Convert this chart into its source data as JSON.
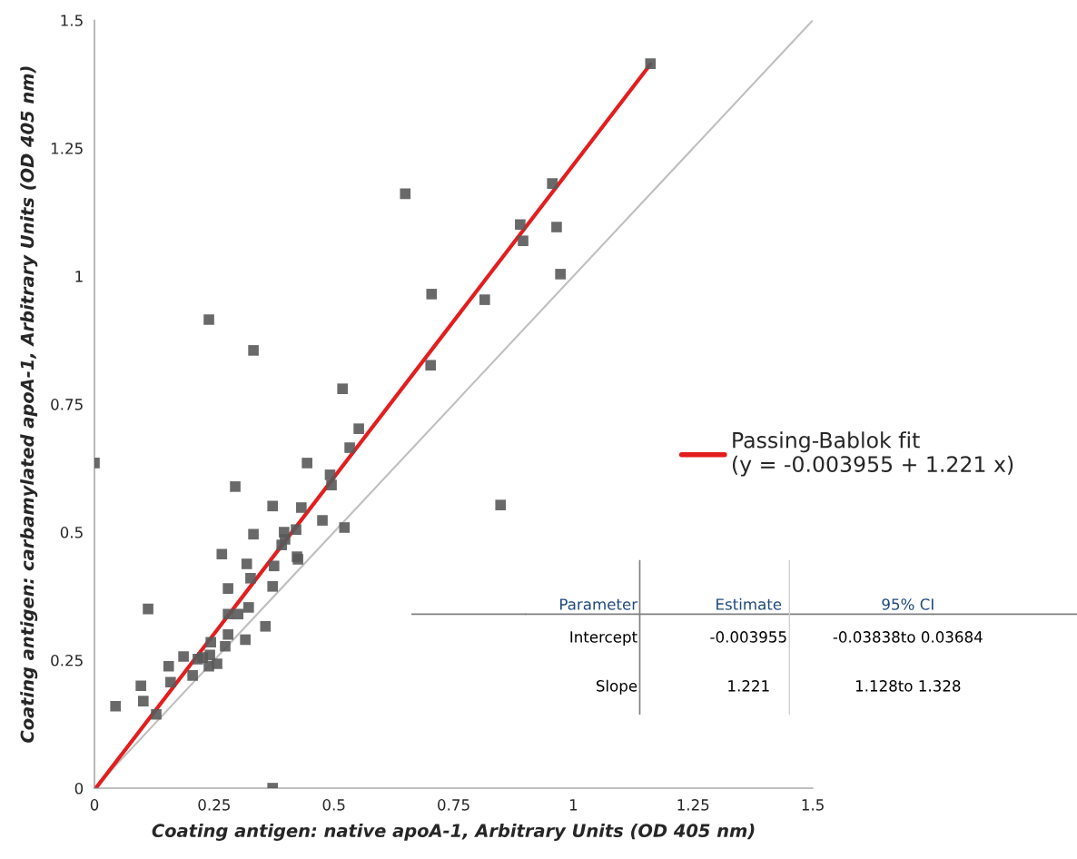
{
  "chart_data": {
    "type": "scatter",
    "xlabel": "Coating antigen: native apoA-1, Arbitrary Units (OD 405 nm)",
    "ylabel": "Coating antigen: carbamylated apoA-1, Arbitrary Units (OD 405 nm)",
    "xlim": [
      0,
      1.5
    ],
    "ylim": [
      0,
      1.5
    ],
    "xticks": [
      0,
      0.25,
      0.5,
      0.75,
      1,
      1.25,
      1.5
    ],
    "yticks": [
      0,
      0.25,
      0.5,
      0.75,
      1,
      1.25,
      1.5
    ],
    "grid": false,
    "legend": "right",
    "marker": "square",
    "series": [
      {
        "color": "#595959",
        "x": [
          0,
          0.044,
          0.097,
          0.102,
          0.112,
          0.129,
          0.155,
          0.159,
          0.186,
          0.205,
          0.216,
          0.226,
          0.239,
          0.243,
          0.241,
          0.239,
          0.256,
          0.266,
          0.273,
          0.279,
          0.279,
          0.279,
          0.294,
          0.3,
          0.315,
          0.318,
          0.322,
          0.326,
          0.332,
          0.332,
          0.357,
          0.372,
          0.375,
          0.372,
          0.372,
          0.391,
          0.396,
          0.398,
          0.421,
          0.423,
          0.425,
          0.432,
          0.444,
          0.476,
          0.492,
          0.495,
          0.518,
          0.522,
          0.533,
          0.552,
          0.649,
          0.704,
          0.702,
          0.815,
          0.848,
          0.889,
          0.895,
          0.956,
          0.965,
          0.973,
          1.161
        ],
        "values": [
          0.635,
          0.16,
          0.2,
          0.17,
          0.35,
          0.144,
          0.238,
          0.207,
          0.257,
          0.22,
          0.252,
          0.255,
          0.915,
          0.285,
          0.26,
          0.238,
          0.243,
          0.457,
          0.277,
          0.3,
          0.34,
          0.39,
          0.589,
          0.34,
          0.29,
          0.438,
          0.353,
          0.41,
          0.855,
          0.496,
          0.316,
          0.551,
          0.434,
          0.394,
          0,
          0.475,
          0.5,
          0.486,
          0.505,
          0.452,
          0.447,
          0.548,
          0.635,
          0.523,
          0.612,
          0.592,
          0.78,
          0.509,
          0.665,
          0.702,
          1.161,
          0.965,
          0.826,
          0.954,
          0.553,
          1.101,
          1.069,
          1.181,
          1.096,
          1.004,
          1.415
        ]
      },
      {
        "type": "line",
        "marker": "none",
        "color": "#bfbfbf",
        "x": [
          0,
          1.5
        ],
        "values": [
          0,
          1.5
        ]
      },
      {
        "type": "line",
        "marker": "none",
        "name": "Passing-Bablok fit\n(y = -0.003955 + 1.221 x)",
        "color": "#e31e1e",
        "x": [
          0.003,
          1.161
        ],
        "values": [
          0,
          1.414
        ]
      }
    ],
    "annotations": [
      "Parameter",
      "Estimate",
      "95% CI",
      "Intercept",
      "-0.003955",
      "-0.03838to 0.03684",
      "Slope",
      "1.221",
      "1.128to 1.328"
    ]
  }
}
